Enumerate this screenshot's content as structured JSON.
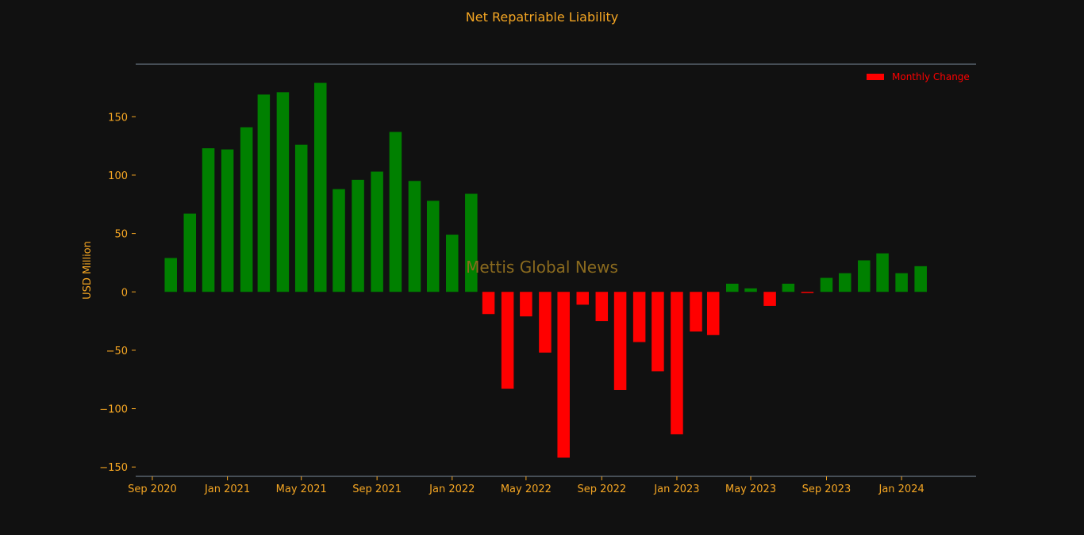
{
  "colors": {
    "background": "#111111",
    "text": "#f5a623",
    "axis_line": "#7a8a9a",
    "positive": "#008000",
    "negative": "#ff0000",
    "watermark": "#8a6a1e",
    "legend_text": "#ff0000"
  },
  "watermark": "Mettis Global News",
  "chart_data": {
    "type": "bar",
    "title": "Net Repatriable Liability",
    "xlabel": "",
    "ylabel": "USD Million",
    "ylim": [
      -158,
      195
    ],
    "yticks": [
      -150,
      -100,
      -50,
      0,
      50,
      100,
      150
    ],
    "ytick_labels": [
      "−150",
      "−100",
      "−50",
      "0",
      "50",
      "100",
      "150"
    ],
    "xlim": [
      "2020-08-05",
      "2024-05-01"
    ],
    "xticks": [
      "2020-09-01",
      "2021-01-01",
      "2021-05-01",
      "2021-09-01",
      "2022-01-01",
      "2022-05-01",
      "2022-09-01",
      "2023-01-01",
      "2023-05-01",
      "2023-09-01",
      "2024-01-01"
    ],
    "xtick_labels": [
      "Sep 2020",
      "Jan 2021",
      "May 2021",
      "Sep 2021",
      "Jan 2022",
      "May 2022",
      "Sep 2022",
      "Jan 2023",
      "May 2023",
      "Sep 2023",
      "Jan 2024"
    ],
    "legend": {
      "label": "Monthly Change",
      "position": "top-right"
    },
    "grid": false,
    "series": [
      {
        "name": "Monthly Change",
        "x": [
          "2020-10",
          "2020-11",
          "2020-12",
          "2021-01",
          "2021-02",
          "2021-03",
          "2021-04",
          "2021-05",
          "2021-06",
          "2021-07",
          "2021-08",
          "2021-09",
          "2021-10",
          "2021-11",
          "2021-12",
          "2022-01",
          "2022-02",
          "2022-03",
          "2022-04",
          "2022-05",
          "2022-06",
          "2022-07",
          "2022-08",
          "2022-09",
          "2022-10",
          "2022-11",
          "2022-12",
          "2023-01",
          "2023-02",
          "2023-03",
          "2023-04",
          "2023-05",
          "2023-06",
          "2023-07",
          "2023-08",
          "2023-09",
          "2023-10",
          "2023-11",
          "2023-12",
          "2024-01",
          "2024-02"
        ],
        "values": [
          29,
          67,
          123,
          122,
          141,
          169,
          171,
          126,
          179,
          88,
          96,
          103,
          137,
          95,
          78,
          49,
          84,
          -19,
          -83,
          -21,
          -52,
          -142,
          -11,
          -25,
          -84,
          -43,
          -68,
          -122,
          -34,
          -37,
          7,
          3,
          -12,
          7,
          -1,
          12,
          16,
          27,
          33,
          16,
          22
        ]
      }
    ]
  }
}
